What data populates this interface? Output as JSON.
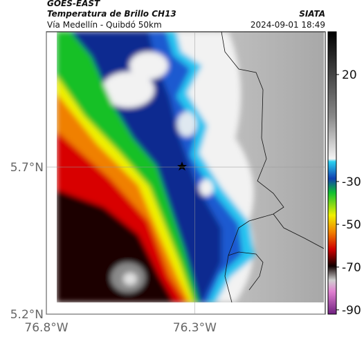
{
  "header": {
    "source": "GOES-EAST",
    "title": "Temperatura de Brillo CH13",
    "organization": "SIATA",
    "subtitle": "Vía Medellín - Quibdó 50km",
    "timestamp": "2024-09-01 18:49"
  },
  "map": {
    "lat_range": [
      5.2,
      6.16
    ],
    "lon_range": [
      -76.8,
      -75.86
    ],
    "lat_ticks": [
      {
        "value": 5.7,
        "label": "5.7°N"
      },
      {
        "value": 5.2,
        "label": "5.2°N"
      }
    ],
    "lon_ticks": [
      {
        "value": -76.8,
        "label": "76.8°W"
      },
      {
        "value": -76.3,
        "label": "76.3°W"
      }
    ]
  },
  "colorbar": {
    "range": [
      40,
      -92
    ],
    "ticks": [
      20,
      -30,
      -50,
      -70,
      -90
    ]
  }
}
